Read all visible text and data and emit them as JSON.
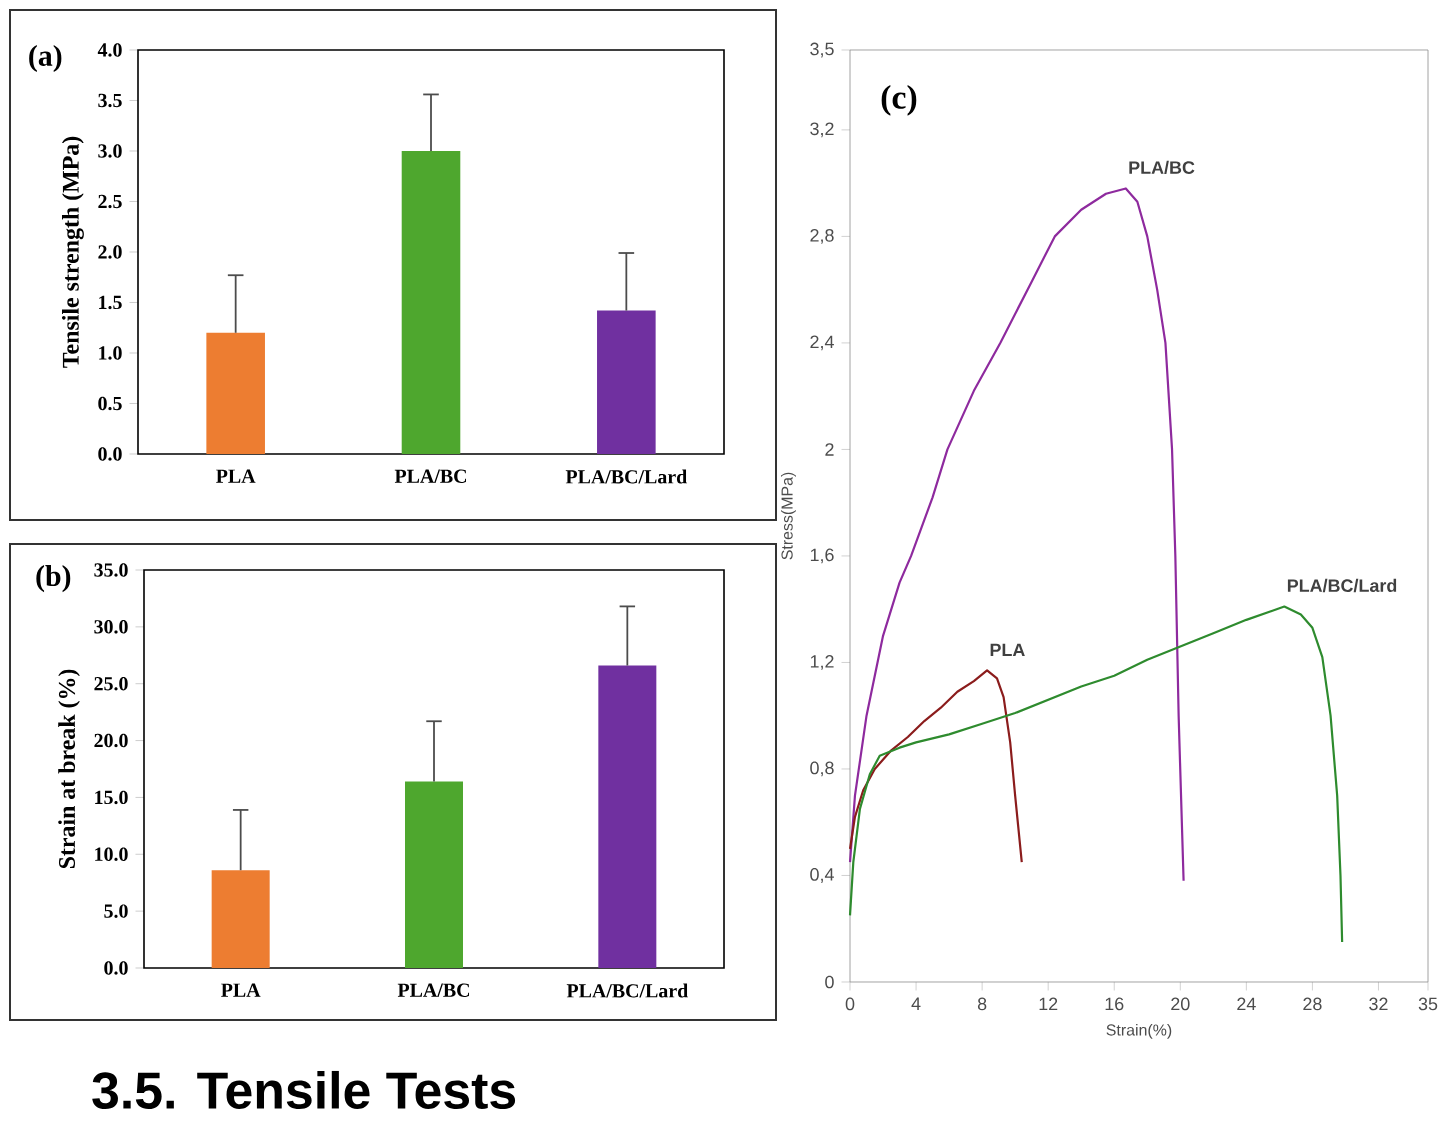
{
  "chart_data": [
    {
      "type": "bar",
      "ylabel": "Tensile strength (MPa)",
      "annotations": [
        "(a)"
      ],
      "categories": [
        "PLA",
        "PLA/BC",
        "PLA/BC/Lard"
      ],
      "values": [
        1.2,
        3.0,
        1.42
      ],
      "colors": [
        "#ed7d31",
        "#4ea72e",
        "#7030a0"
      ],
      "errors": [
        [
          1.2,
          1.77
        ],
        [
          3.0,
          3.56
        ],
        [
          1.42,
          1.99
        ]
      ],
      "ylim": [
        0,
        4
      ],
      "yticks": [
        {
          "value": 0,
          "label": "0.0"
        },
        {
          "value": 0.5,
          "label": "0.5"
        },
        {
          "value": 1,
          "label": "1.0"
        },
        {
          "value": 1.5,
          "label": "1.5"
        },
        {
          "value": 2,
          "label": "2.0"
        },
        {
          "value": 2.5,
          "label": "2.5"
        },
        {
          "value": 3,
          "label": "3.0"
        },
        {
          "value": 3.5,
          "label": "3.5"
        },
        {
          "value": 4,
          "label": "4.0"
        }
      ]
    },
    {
      "type": "bar",
      "ylabel": "Strain at break (%)",
      "annotations": [
        "(b)",
        "3.5. Tensile Tests"
      ],
      "categories": [
        "PLA",
        "PLA/BC",
        "PLA/BC/Lard"
      ],
      "values": [
        8.6,
        16.4,
        26.6
      ],
      "colors": [
        "#ed7d31",
        "#4ea72e",
        "#7030a0"
      ],
      "errors": [
        [
          8.6,
          13.9
        ],
        [
          16.4,
          21.7
        ],
        [
          26.6,
          31.8
        ]
      ],
      "ylim": [
        0,
        35
      ],
      "yticks": [
        {
          "value": 0,
          "label": "0.0"
        },
        {
          "value": 5,
          "label": "5.0"
        },
        {
          "value": 10,
          "label": "10.0"
        },
        {
          "value": 15,
          "label": "15.0"
        },
        {
          "value": 20,
          "label": "20.0"
        },
        {
          "value": 25,
          "label": "25.0"
        },
        {
          "value": 30,
          "label": "30.0"
        },
        {
          "value": 35,
          "label": "35.0"
        }
      ]
    },
    {
      "type": "line",
      "xlabel": "Strain(%)",
      "ylabel": "Stress(MPa)",
      "annotations": [
        "(c)"
      ],
      "series": [
        {
          "name": "PLA/BC",
          "color": "#8e2a9e",
          "x": [
            0,
            0.3,
            1,
            2,
            3,
            3.7,
            5,
            5.9,
            7.5,
            9.1,
            11,
            12.4,
            14,
            15.5,
            16.7,
            17.4,
            18,
            18.6,
            19.1,
            19.5,
            19.7,
            19.9,
            20.2
          ],
          "values": [
            0.45,
            0.7,
            1.0,
            1.3,
            1.5,
            1.6,
            1.82,
            2.0,
            2.22,
            2.4,
            2.63,
            2.8,
            2.9,
            2.96,
            2.98,
            2.93,
            2.8,
            2.6,
            2.4,
            2.0,
            1.6,
            1.0,
            0.38
          ]
        },
        {
          "name": "PLA",
          "color": "#8b1c1c",
          "x": [
            0,
            0.3,
            0.8,
            1.5,
            2.5,
            3.5,
            4.5,
            5.5,
            6.5,
            7.5,
            8.3,
            8.9,
            9.3,
            9.7,
            10.0,
            10.4
          ],
          "values": [
            0.5,
            0.62,
            0.72,
            0.8,
            0.87,
            0.92,
            0.98,
            1.03,
            1.09,
            1.13,
            1.17,
            1.14,
            1.07,
            0.9,
            0.7,
            0.45
          ]
        },
        {
          "name": "PLA/BC/Lard",
          "color": "#2e8b2e",
          "x": [
            0,
            0.2,
            0.6,
            1.2,
            1.8,
            3,
            4,
            6,
            8,
            10,
            12,
            14,
            16,
            18,
            20,
            22,
            24,
            26.3,
            27.3,
            28,
            28.6,
            29.1,
            29.5,
            29.7,
            29.8
          ],
          "values": [
            0.25,
            0.45,
            0.65,
            0.78,
            0.85,
            0.88,
            0.9,
            0.93,
            0.97,
            1.01,
            1.06,
            1.11,
            1.15,
            1.21,
            1.26,
            1.31,
            1.36,
            1.41,
            1.38,
            1.33,
            1.22,
            1.0,
            0.7,
            0.4,
            0.15
          ]
        }
      ],
      "xlim": [
        0,
        35
      ],
      "xticks": [
        0,
        4,
        8,
        12,
        16,
        20,
        24,
        28,
        32,
        35
      ],
      "ylim": [
        0,
        3.5
      ],
      "yticks": [
        0,
        {
          "value": 0.4,
          "label": "0,4"
        },
        {
          "value": 0.8,
          "label": "0,8"
        },
        {
          "value": 1.2,
          "label": "1,2"
        },
        {
          "value": 1.6,
          "label": "1,6"
        },
        2,
        {
          "value": 2.4,
          "label": "2,4"
        },
        {
          "value": 2.8,
          "label": "2,8"
        },
        {
          "value": 3.2,
          "label": "3,2"
        },
        {
          "value": 3.5,
          "label": "3,5"
        }
      ]
    }
  ]
}
